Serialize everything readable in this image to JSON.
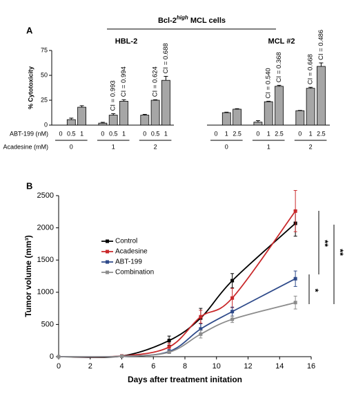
{
  "panel_labels": [
    "A",
    "B"
  ],
  "header": {
    "text": "Bcl-2",
    "superscript": "high",
    "after": "MCL cells"
  },
  "chart_data": [
    {
      "type": "bar",
      "title": "HBL-2",
      "ylabel": "% Cytotoxicity",
      "categories": [
        "0",
        "0.5",
        "1",
        "0",
        "0.5",
        "1",
        "0",
        "0.5",
        "1"
      ],
      "values": [
        0,
        5.5,
        18,
        2,
        10,
        24,
        10,
        25,
        45
      ],
      "errors": [
        0,
        1.5,
        1.5,
        0.8,
        1.5,
        1.5,
        0.8,
        0.5,
        4
      ],
      "annotations": [
        null,
        null,
        null,
        null,
        "CI = 0.993",
        "CI = 0.994",
        null,
        "CI = 0.624",
        "CI = 0.688"
      ],
      "groups": [
        "0",
        "1",
        "2"
      ],
      "row_labels": [
        "ABT-199 (nM)",
        "Acadesine (mM)"
      ],
      "ylim": [
        0,
        75
      ],
      "yticks": [
        0,
        25,
        50,
        75
      ],
      "color": "#a6a6a6"
    },
    {
      "type": "bar",
      "title": "MCL #2",
      "categories": [
        "0",
        "1",
        "2.5",
        "0",
        "1",
        "2.5",
        "0",
        "1",
        "2.5"
      ],
      "values": [
        0,
        12.5,
        16,
        3,
        23.5,
        39,
        14.5,
        37,
        59
      ],
      "errors": [
        0,
        0.5,
        0.5,
        1.5,
        0.5,
        1,
        0.3,
        1,
        3.5
      ],
      "annotations": [
        null,
        null,
        null,
        null,
        "CI = 0.540",
        "CI = 0.368",
        null,
        "CI = 0.668",
        "CI = 0.486"
      ],
      "groups": [
        "0",
        "1",
        "2"
      ],
      "ylim": [
        0,
        75
      ],
      "color": "#a6a6a6"
    },
    {
      "type": "line",
      "xlabel": "Days after treatment initation",
      "ylabel": "Tumor volume (mm³)",
      "x": [
        0,
        4,
        7,
        9,
        11,
        15
      ],
      "xlim": [
        0,
        16
      ],
      "xticks": [
        0,
        2,
        4,
        6,
        8,
        10,
        12,
        14,
        16
      ],
      "ylim": [
        0,
        2500
      ],
      "yticks": [
        0,
        500,
        1000,
        1500,
        2000,
        2500
      ],
      "legend": "left",
      "series": [
        {
          "name": "Control",
          "color": "#000000",
          "values": [
            0,
            10,
            250,
            600,
            1180,
            2070
          ],
          "errors": [
            0,
            10,
            70,
            150,
            110,
            200
          ]
        },
        {
          "name": "Acadesine",
          "color": "#c9282a",
          "values": [
            0,
            10,
            150,
            620,
            910,
            2260
          ],
          "errors": [
            0,
            10,
            60,
            100,
            150,
            320
          ]
        },
        {
          "name": "ABT-199",
          "color": "#2e4a8a",
          "values": [
            0,
            5,
            80,
            430,
            700,
            1210
          ],
          "errors": [
            0,
            5,
            30,
            80,
            70,
            120
          ]
        },
        {
          "name": "Combination",
          "color": "#8c8c8c",
          "values": [
            0,
            5,
            70,
            350,
            580,
            840
          ],
          "errors": [
            0,
            5,
            20,
            60,
            50,
            100
          ]
        }
      ],
      "annotations": [
        "**",
        "**",
        "*"
      ]
    }
  ]
}
